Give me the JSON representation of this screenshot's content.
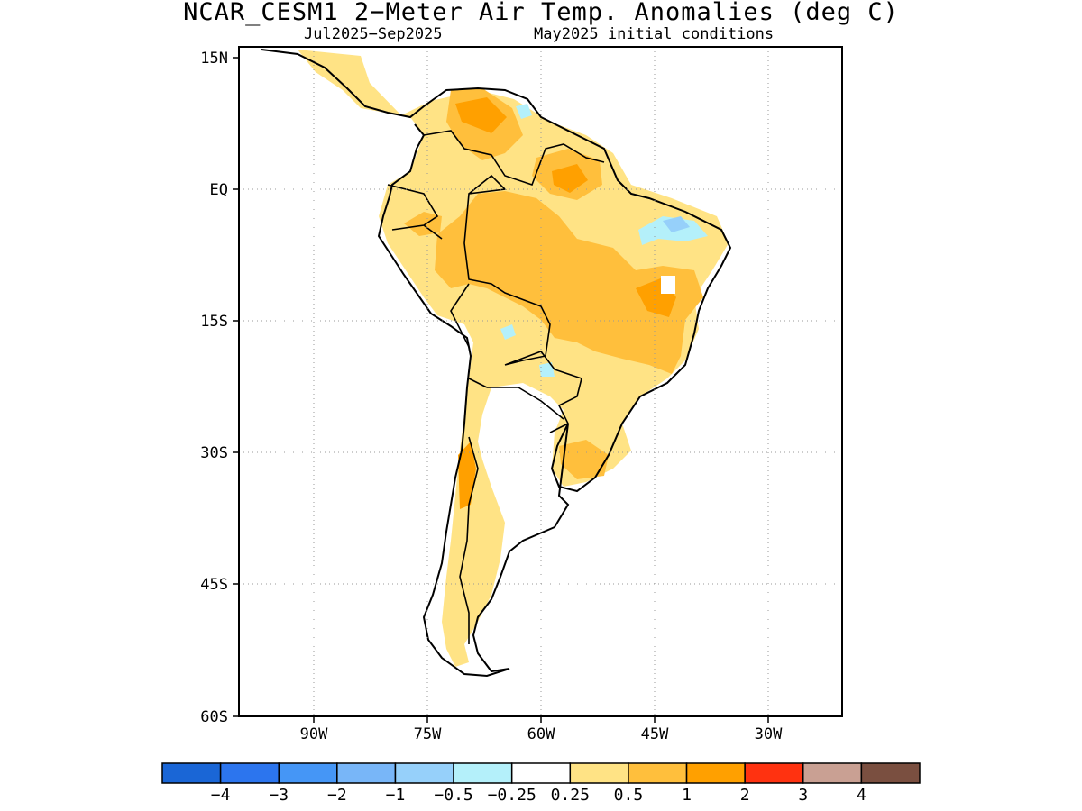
{
  "title": "NCAR_CESM1 2−Meter Air Temp. Anomalies (deg C)",
  "subtitle_left": "Jul2025−Sep2025",
  "subtitle_right": "May2025 initial conditions",
  "map": {
    "region": "South America",
    "lon_range": [
      -100,
      -20
    ],
    "lat_range": [
      -60,
      15
    ],
    "y_ticks": [
      "15N",
      "EQ",
      "15S",
      "30S",
      "45S",
      "60S"
    ],
    "x_ticks": [
      "90W",
      "75W",
      "60W",
      "45W",
      "30W"
    ],
    "grid": "dotted"
  },
  "colorbar": {
    "colors": [
      "#1a66d6",
      "#2c75ee",
      "#4596f6",
      "#78b6f8",
      "#96d0fa",
      "#b4f0fa",
      "#ffffff",
      "#ffe385",
      "#ffbf3c",
      "#ffa000",
      "#ff3210",
      "#c9a093",
      "#7a4f40"
    ],
    "labels": [
      "−4",
      "−3",
      "−2",
      "−1",
      "−0.5",
      "−0.25",
      "0.25",
      "0.5",
      "1",
      "2",
      "3",
      "4"
    ]
  }
}
